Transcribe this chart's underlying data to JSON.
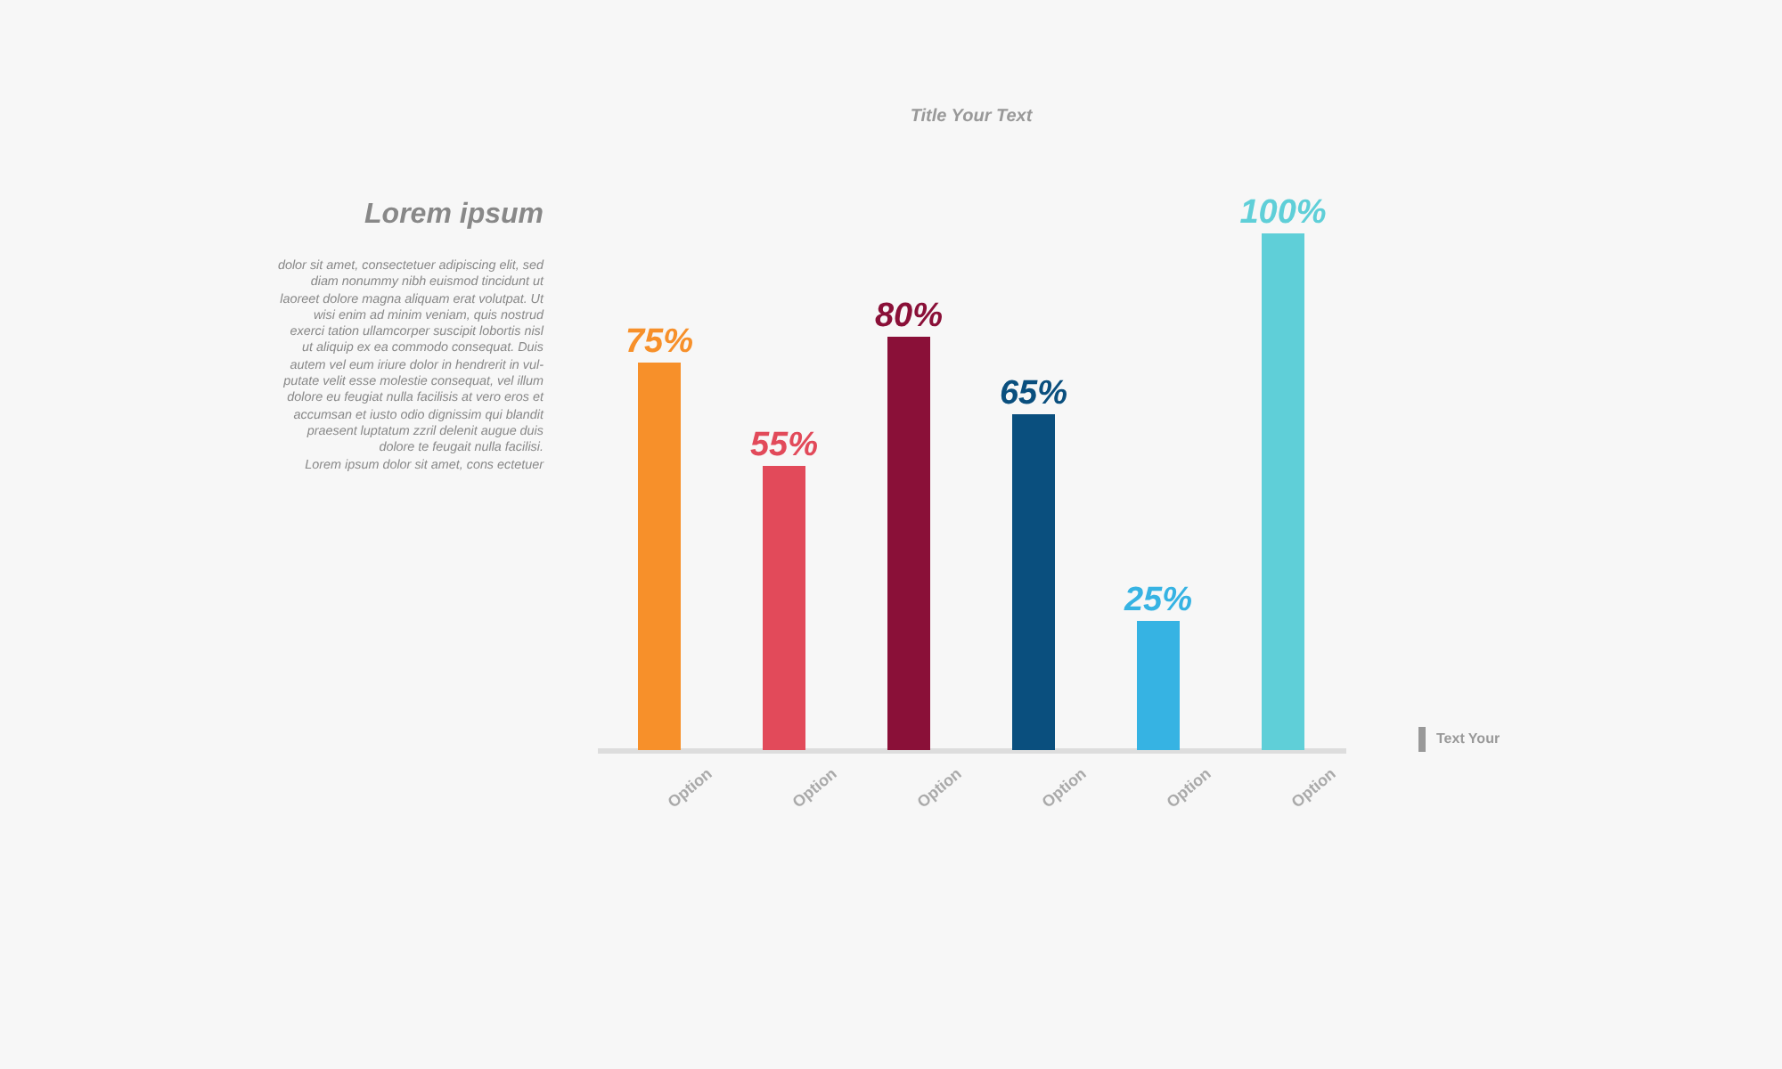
{
  "chart_data": {
    "type": "bar",
    "title": "Title Your Text",
    "categories": [
      "Option",
      "Option",
      "Option",
      "Option",
      "Option",
      "Option"
    ],
    "values": [
      75,
      55,
      80,
      65,
      25,
      100
    ],
    "colors": [
      "#f7902a",
      "#e24a5a",
      "#8a1038",
      "#0a4f7e",
      "#36b3e3",
      "#5fcfd8"
    ],
    "value_labels": [
      "75%",
      "55%",
      "80%",
      "65%",
      "25%",
      "100%"
    ],
    "annotations": [
      "Lorem ipsum",
      "dolor sit amet, consectetuer adipiscing elit, sed\ndiam nonummy nibh euismod tincidunt ut\nlaoreet dolore magna aliquam erat volutpat. Ut\nwisi enim ad minim veniam, quis nostrud\nexerci tation ullamcorper suscipit lobortis nisl\nut aliquip ex ea commodo consequat. Duis\nautem vel eum iriure dolor in hendrerit in vul-\nputate velit esse molestie consequat, vel illum\ndolore eu feugiat nulla facilisis at vero eros et\naccumsan et iusto odio dignissim qui blandit\npraesent luptatum zzril delenit augue duis\ndolore te feugait nulla facilisi.\nLorem ipsum dolor sit amet, cons ectetuer",
      "Text Your"
    ]
  }
}
